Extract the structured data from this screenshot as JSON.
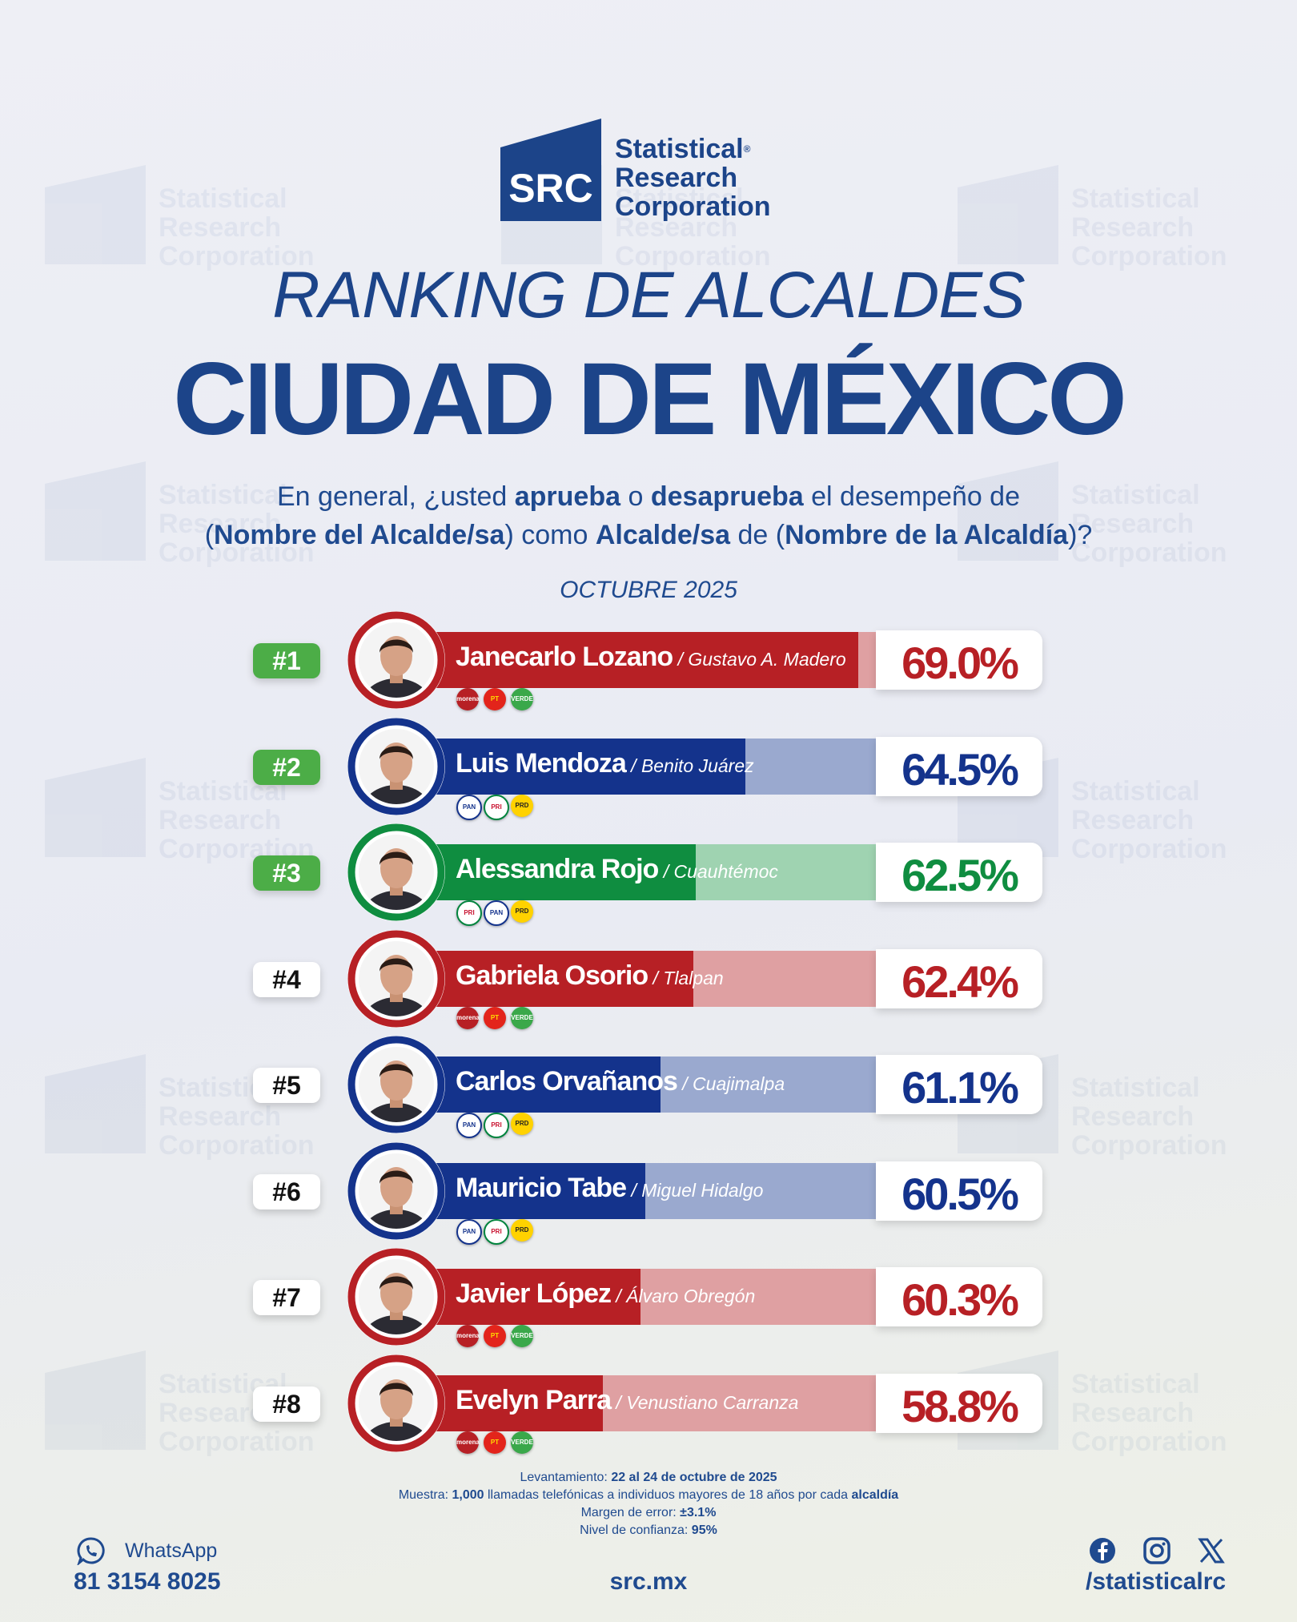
{
  "brand": {
    "logo_mark": "SRC",
    "name_line1": "Statistical",
    "name_line2": "Research",
    "name_line3": "Corporation",
    "reg": "®",
    "color": "#1c4489"
  },
  "titles": {
    "line1": "RANKING DE ALCALDES",
    "line2": "CIUDAD DE MÉXICO"
  },
  "question": {
    "p1": "En general, ¿usted ",
    "b1": "aprueba",
    "p2": " o ",
    "b2": "desaprueba",
    "p3": " el desempeño de",
    "p4": "(",
    "b3": "Nombre del Alcalde/sa",
    "p5": ") como ",
    "b4": "Alcalde/sa",
    "p6": " de (",
    "b5": "Nombre de la Alcaldía",
    "p7": ")?"
  },
  "month": "OCTUBRE 2025",
  "chart_data": {
    "type": "bar",
    "unit": "%",
    "categories": [
      "Janecarlo Lozano",
      "Luis Mendoza",
      "Alessandra Rojo",
      "Gabriela Osorio",
      "Carlos Orvañanos",
      "Mauricio Tabe",
      "Javier López",
      "Evelyn Parra"
    ],
    "values": [
      69.0,
      64.5,
      62.5,
      62.4,
      61.1,
      60.5,
      60.3,
      58.8
    ],
    "rows": [
      {
        "rank": "#1",
        "name": "Janecarlo Lozano",
        "alcaldia": " / Gustavo A. Madero",
        "value": 69.0,
        "label": "69.0%",
        "color": "#b72025",
        "tail": "#dfa0a2",
        "parties": [
          "morena",
          "pt",
          "verde"
        ],
        "top": true
      },
      {
        "rank": "#2",
        "name": "Luis Mendoza",
        "alcaldia": " / Benito Juárez",
        "value": 64.5,
        "label": "64.5%",
        "color": "#14338c",
        "tail": "#9aa9cf",
        "parties": [
          "pan",
          "pri",
          "prd"
        ],
        "top": true
      },
      {
        "rank": "#3",
        "name": "Alessandra Rojo",
        "alcaldia": " / Cuauhtémoc",
        "value": 62.5,
        "label": "62.5%",
        "color": "#0f8d40",
        "tail": "#9fd3b1",
        "parties": [
          "pri",
          "pan",
          "prd"
        ],
        "top": true
      },
      {
        "rank": "#4",
        "name": "Gabriela Osorio",
        "alcaldia": " / Tlalpan",
        "value": 62.4,
        "label": "62.4%",
        "color": "#b72025",
        "tail": "#dfa0a2",
        "parties": [
          "morena",
          "pt",
          "verde"
        ],
        "top": false
      },
      {
        "rank": "#5",
        "name": "Carlos Orvañanos",
        "alcaldia": " / Cuajimalpa",
        "value": 61.1,
        "label": "61.1%",
        "color": "#14338c",
        "tail": "#9aa9cf",
        "parties": [
          "pan",
          "pri",
          "prd"
        ],
        "top": false
      },
      {
        "rank": "#6",
        "name": "Mauricio Tabe",
        "alcaldia": " / Miguel Hidalgo",
        "value": 60.5,
        "label": "60.5%",
        "color": "#14338c",
        "tail": "#9aa9cf",
        "parties": [
          "pan",
          "pri",
          "prd"
        ],
        "top": false
      },
      {
        "rank": "#7",
        "name": "Javier López",
        "alcaldia": " / Álvaro Obregón",
        "value": 60.3,
        "label": "60.3%",
        "color": "#b72025",
        "tail": "#dfa0a2",
        "parties": [
          "morena",
          "pt",
          "verde"
        ],
        "top": false
      },
      {
        "rank": "#8",
        "name": "Evelyn Parra",
        "alcaldia": " / Venustiano Carranza",
        "value": 58.8,
        "label": "58.8%",
        "color": "#b72025",
        "tail": "#dfa0a2",
        "parties": [
          "morena",
          "pt",
          "verde"
        ],
        "top": false
      }
    ]
  },
  "party_labels": {
    "morena": "morena",
    "pt": "PT",
    "verde": "VERDE",
    "pan": "PAN",
    "pri": "PRI",
    "prd": "PRD"
  },
  "footer": {
    "lev_label": "Levantamiento: ",
    "lev_value": "22 al 24 de octubre de 2025",
    "muestra_label": "Muestra: ",
    "muestra_value": "1,000",
    "muestra_text": " llamadas telefónicas a individuos mayores de 18 años por cada ",
    "muestra_bold": "alcaldía",
    "margen_label": "Margen de error: ",
    "margen_value": "±3.1%",
    "nivel_label": "Nivel de confianza: ",
    "nivel_value": "95%",
    "whatsapp_label": "WhatsApp",
    "phone": "81 3154 8025",
    "site": "src.mx",
    "handle": "/statisticalrc"
  },
  "icons": [
    "whatsapp-icon",
    "facebook-icon",
    "instagram-icon",
    "x-icon"
  ]
}
